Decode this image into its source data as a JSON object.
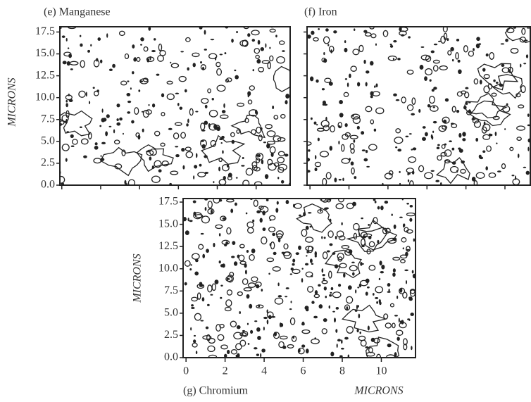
{
  "chart_data": [
    {
      "type": "contour",
      "title": "(e)  Manganese",
      "ylabel": "MICRONS",
      "xlim": [
        -0.1,
        11.75
      ],
      "ylim": [
        0,
        18.1
      ],
      "xticks": [
        0,
        2,
        4,
        6,
        8,
        10
      ],
      "xtick_labels": false,
      "yticks": [
        {
          "value": 0,
          "label": "0.0"
        },
        2.5,
        {
          "value": 5,
          "label": "5.0"
        },
        7.5,
        {
          "value": 10,
          "label": "10.0"
        },
        12.5,
        {
          "value": 15,
          "label": "15.0"
        },
        17.5
      ],
      "ytick_labels": true
    },
    {
      "type": "contour",
      "title": "(f)  Iron",
      "xlim": [
        -0.15,
        11.3
      ],
      "ylim": [
        0,
        18.1
      ],
      "xticks": [
        0,
        2,
        4,
        6,
        8,
        10
      ],
      "xtick_labels": false,
      "yticks": [
        0,
        2.5,
        5,
        7.5,
        10,
        12.5,
        15,
        17.5
      ],
      "ytick_labels": false
    },
    {
      "type": "contour",
      "title": "(g)  Chromium",
      "ylabel": "MICRONS",
      "xlabel": "MICRONS",
      "xlim": [
        -0.15,
        11.75
      ],
      "ylim": [
        0,
        17.9
      ],
      "xticks": [
        0,
        2,
        4,
        6,
        8,
        10
      ],
      "xtick_labels": true,
      "yticks": [
        {
          "value": 0,
          "label": "0.0"
        },
        2.5,
        {
          "value": 5,
          "label": "5.0"
        },
        7.5,
        {
          "value": 10,
          "label": "10.0"
        },
        12.5,
        {
          "value": 15,
          "label": "15.0"
        },
        17.5
      ],
      "ytick_labels": true
    }
  ]
}
